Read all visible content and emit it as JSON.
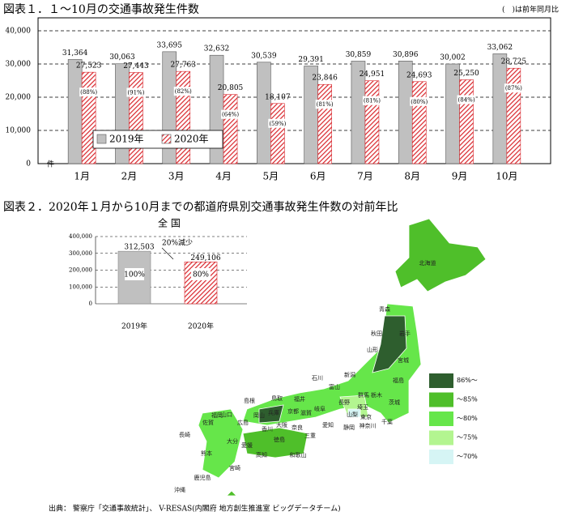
{
  "chart_data": [
    {
      "type": "bar",
      "title": "図表１．１～10月の交通事故発生件数",
      "note": "(　)は前年同月比",
      "y_unit": "件",
      "categories": [
        "1月",
        "2月",
        "3月",
        "4月",
        "5月",
        "6月",
        "7月",
        "8月",
        "9月",
        "10月"
      ],
      "series": [
        {
          "name": "2019年",
          "color": "#c0c0c0",
          "values": [
            31364,
            30063,
            33695,
            32632,
            30539,
            29391,
            30859,
            30896,
            30002,
            33062
          ],
          "value_labels": [
            "31,364",
            "30,063",
            "33,695",
            "32,632",
            "30,539",
            "29,391",
            "30,859",
            "30,896",
            "30,002",
            "33,062"
          ]
        },
        {
          "name": "2020年",
          "color": "#d9262c",
          "hatched": true,
          "values": [
            27523,
            27443,
            27763,
            20805,
            18107,
            23846,
            24951,
            24693,
            25250,
            28725
          ],
          "value_labels": [
            "27,523",
            "27,443",
            "27,763",
            "20,805",
            "18,107",
            "23,846",
            "24,951",
            "24,693",
            "25,250",
            "28,725"
          ],
          "ratio_labels": [
            "(88%)",
            "(91%)",
            "(82%)",
            "(64%)",
            "(59%)",
            "(81%)",
            "(81%)",
            "(80%)",
            "(84%)",
            "(87%)"
          ]
        }
      ],
      "ylim": [
        0,
        40000
      ],
      "yticks": [
        0,
        {
          "value": 10000,
          "label": "10,000"
        },
        {
          "value": 20000,
          "label": "20,000"
        },
        {
          "value": 30000,
          "label": "30,000"
        },
        {
          "value": 40000,
          "label": "40,000"
        }
      ],
      "grid": true,
      "legend": "lower left"
    },
    {
      "type": "bar",
      "title": "全 国",
      "categories": [
        "2019年",
        "2020年"
      ],
      "values": [
        312503,
        249106
      ],
      "value_labels": [
        "312,503",
        "249,106"
      ],
      "share_labels": [
        "100%",
        "80%"
      ],
      "colors": [
        "#c0c0c0",
        "#d9262c"
      ],
      "hatched": [
        false,
        true
      ],
      "annotation": "20%減少",
      "ylim": [
        0,
        400000
      ],
      "yticks": [
        0,
        {
          "value": 100000,
          "label": "100,000"
        },
        {
          "value": 200000,
          "label": "200,000"
        },
        {
          "value": 300000,
          "label": "300,000"
        },
        {
          "value": 400000,
          "label": "400,000"
        }
      ],
      "grid": true
    }
  ],
  "fig2_title": "図表２．2020年１月から10月までの都道府県別交通事故発生件数の対前年比",
  "map": {
    "prefectures": [
      "北海道",
      "青森",
      "秋田",
      "岩手",
      "山形",
      "宮城",
      "新潟",
      "福島",
      "石川",
      "富山",
      "長野",
      "群馬",
      "栃木",
      "茨城",
      "埼玉",
      "東京",
      "千葉",
      "神奈川",
      "山梨",
      "静岡",
      "愛知",
      "岐阜",
      "福井",
      "滋賀",
      "京都",
      "兵庫",
      "大阪",
      "奈良",
      "和歌山",
      "三重",
      "鳥取",
      "島根",
      "岡山",
      "広島",
      "山口",
      "香川",
      "徳島",
      "愛媛",
      "高知",
      "福岡",
      "佐賀",
      "長崎",
      "熊本",
      "大分",
      "宮崎",
      "鹿児島",
      "沖縄"
    ],
    "legend": [
      {
        "label": "86%～",
        "color": "#2e5e2e"
      },
      {
        "label": "～85%",
        "color": "#4fbf2a"
      },
      {
        "label": "～80%",
        "color": "#66e64a"
      },
      {
        "label": "～75%",
        "color": "#b3f590"
      },
      {
        "label": "～70%",
        "color": "#d6f5f5"
      }
    ]
  },
  "source": "出典： 警察庁「交通事故統計」、 V-RESAS(内閣府 地方創生推進室 ビッグデータチーム)"
}
